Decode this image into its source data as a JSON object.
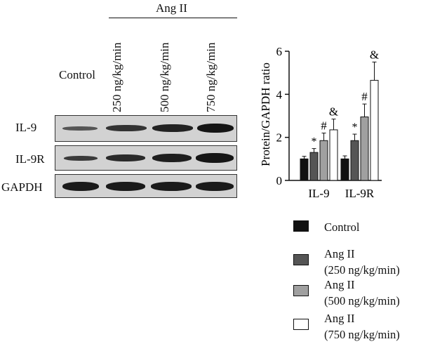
{
  "blot": {
    "group_label": "Ang II",
    "control_label": "Control",
    "lanes": [
      "250 ng/kg/min",
      "500 ng/kg/min",
      "750 ng/kg/min"
    ],
    "rows": [
      "IL-9",
      "IL-9R",
      "GAPDH"
    ]
  },
  "chart_data": {
    "type": "bar",
    "categories": [
      "IL-9",
      "IL-9R"
    ],
    "ylabel": "Protein/GAPDH ratio",
    "ylim": [
      0,
      6
    ],
    "yticks": [
      0,
      2,
      4,
      6
    ],
    "series": [
      {
        "name": "Control",
        "color": "#111111",
        "values": [
          1.0,
          1.0
        ],
        "errors": [
          0.12,
          0.14
        ]
      },
      {
        "name": "Ang II (250 ng/kg/min)",
        "color": "#555555",
        "values": [
          1.3,
          1.85
        ],
        "errors": [
          0.18,
          0.3
        ]
      },
      {
        "name": "Ang II (500 ng/kg/min)",
        "color": "#a0a0a0",
        "values": [
          1.85,
          2.95
        ],
        "errors": [
          0.35,
          0.6
        ]
      },
      {
        "name": "Ang II (750 ng/kg/min)",
        "color": "#ffffff",
        "values": [
          2.35,
          4.65
        ],
        "errors": [
          0.5,
          0.85
        ]
      }
    ],
    "annotations": [
      "",
      "*",
      "#",
      "&"
    ],
    "grid": false
  },
  "legend": [
    {
      "line1": "Control",
      "line2": ""
    },
    {
      "line1": "Ang II",
      "line2": "(250 ng/kg/min)"
    },
    {
      "line1": "Ang II",
      "line2": "(500 ng/kg/min)"
    },
    {
      "line1": "Ang II",
      "line2": "(750 ng/kg/min)"
    }
  ]
}
